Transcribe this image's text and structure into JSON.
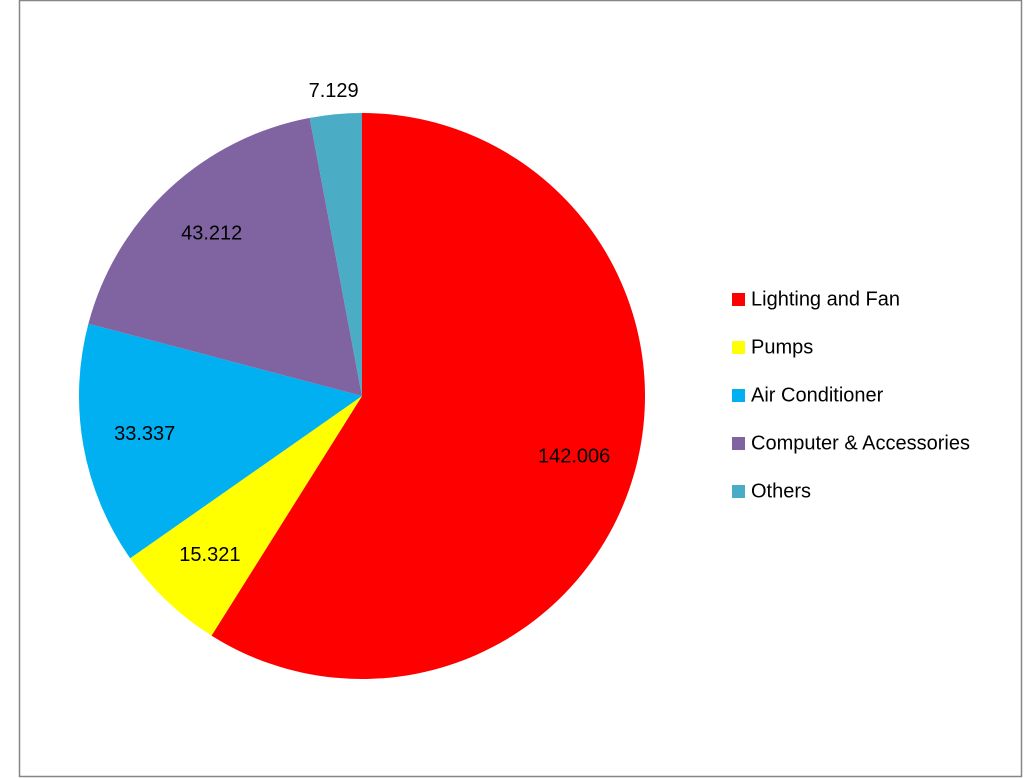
{
  "chart_data": {
    "type": "pie",
    "categories": [
      "Lighting and Fan",
      "Pumps",
      "Air Conditioner",
      "Computer & Accessories",
      "Others"
    ],
    "values": [
      142.006,
      15.321,
      33.337,
      43.212,
      7.129
    ],
    "colors": [
      "#ff0000",
      "#ffff00",
      "#00b0f0",
      "#8064a2",
      "#4bacc6"
    ],
    "legend": "right"
  }
}
